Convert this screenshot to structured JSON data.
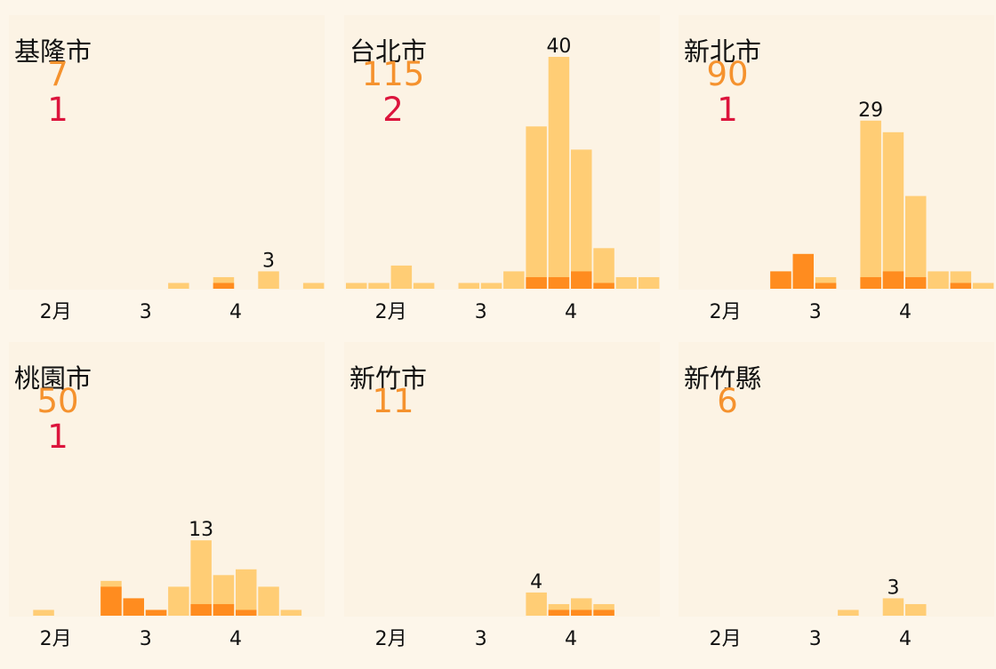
{
  "colors": {
    "cases": "#ffcd75",
    "deaths": "#ff8c1f",
    "total_text": "#f5922e",
    "death_text": "#dc143c"
  },
  "chart_data": [
    {
      "type": "bar",
      "title": "基隆市",
      "total": "7",
      "deaths": "1",
      "x_ticks": [
        "2月",
        "3",
        "4"
      ],
      "ylim": [
        0,
        40
      ],
      "cases": [
        0,
        0,
        0,
        0,
        0,
        0,
        0,
        1,
        0,
        2,
        0,
        3,
        0,
        1
      ],
      "deaths_series": [
        0,
        0,
        0,
        0,
        0,
        0,
        0,
        0,
        0,
        1,
        0,
        0,
        0,
        0
      ],
      "peak_label": {
        "index": 11,
        "text": "3"
      }
    },
    {
      "type": "bar",
      "title": "台北市",
      "total": "115",
      "deaths": "2",
      "x_ticks": [
        "2月",
        "3",
        "4"
      ],
      "ylim": [
        0,
        40
      ],
      "cases": [
        1,
        1,
        4,
        1,
        0,
        1,
        1,
        3,
        28,
        40,
        24,
        7,
        2,
        2
      ],
      "deaths_series": [
        0,
        0,
        0,
        0,
        0,
        0,
        0,
        0,
        2,
        2,
        3,
        1,
        0,
        0
      ],
      "peak_label": {
        "index": 9,
        "text": "40"
      }
    },
    {
      "type": "bar",
      "title": "新北市",
      "total": "90",
      "deaths": "1",
      "x_ticks": [
        "2月",
        "3",
        "4"
      ],
      "ylim": [
        0,
        40
      ],
      "cases": [
        0,
        0,
        0,
        0,
        3,
        6,
        2,
        0,
        29,
        27,
        16,
        3,
        3,
        1
      ],
      "deaths_series": [
        0,
        0,
        0,
        0,
        3,
        6,
        1,
        0,
        2,
        3,
        2,
        0,
        1,
        0
      ],
      "peak_label": {
        "index": 8,
        "text": "29"
      }
    },
    {
      "type": "bar",
      "title": "桃園市",
      "total": "50",
      "deaths": "1",
      "x_ticks": [
        "2月",
        "3",
        "4"
      ],
      "ylim": [
        0,
        40
      ],
      "cases": [
        0,
        1,
        0,
        0,
        6,
        3,
        1,
        5,
        13,
        7,
        8,
        5,
        1,
        0
      ],
      "deaths_series": [
        0,
        0,
        0,
        0,
        5,
        3,
        1,
        0,
        2,
        2,
        1,
        0,
        0,
        0
      ],
      "peak_label": {
        "index": 8,
        "text": "13"
      }
    },
    {
      "type": "bar",
      "title": "新竹市",
      "total": "11",
      "deaths": "",
      "x_ticks": [
        "2月",
        "3",
        "4"
      ],
      "ylim": [
        0,
        40
      ],
      "cases": [
        0,
        0,
        0,
        0,
        0,
        0,
        0,
        0,
        4,
        2,
        3,
        2,
        0,
        0
      ],
      "deaths_series": [
        0,
        0,
        0,
        0,
        0,
        0,
        0,
        0,
        0,
        1,
        1,
        1,
        0,
        0
      ],
      "peak_label": {
        "index": 8,
        "text": "4"
      }
    },
    {
      "type": "bar",
      "title": "新竹縣",
      "total": "6",
      "deaths": "",
      "x_ticks": [
        "2月",
        "3",
        "4"
      ],
      "ylim": [
        0,
        40
      ],
      "cases": [
        0,
        0,
        0,
        0,
        0,
        0,
        0,
        1,
        0,
        3,
        2,
        0,
        0,
        0
      ],
      "deaths_series": [
        0,
        0,
        0,
        0,
        0,
        0,
        0,
        0,
        0,
        0,
        0,
        0,
        0,
        0
      ],
      "peak_label": {
        "index": 9,
        "text": "3"
      }
    }
  ]
}
